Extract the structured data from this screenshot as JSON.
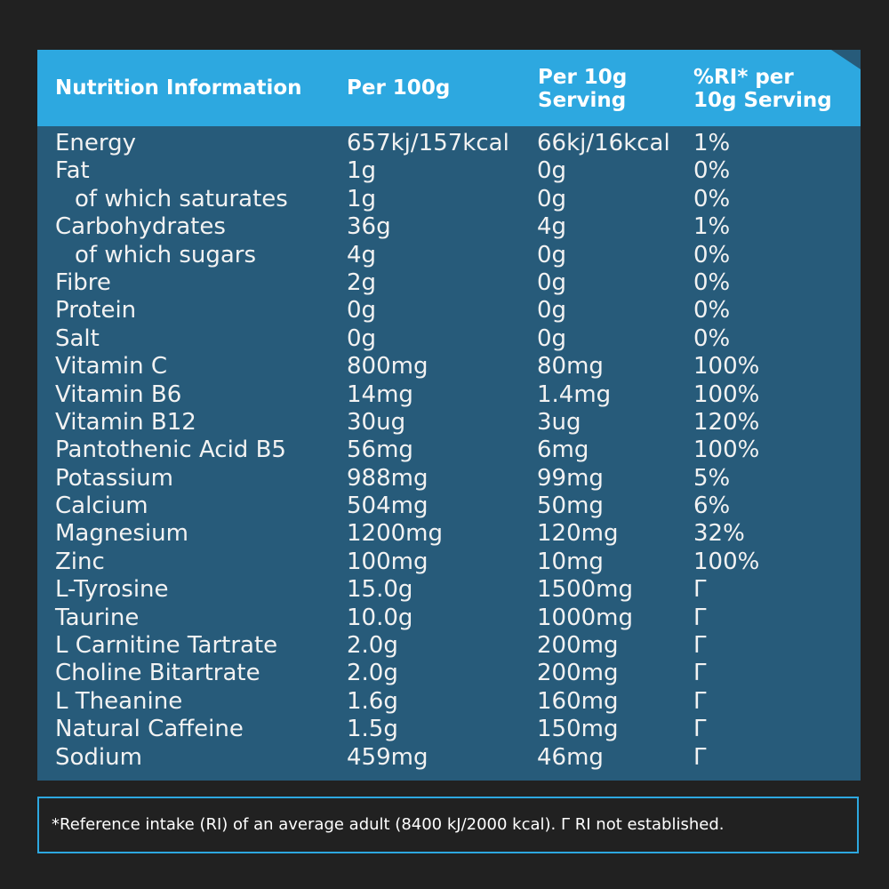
{
  "header": {
    "col1": "Nutrition Information",
    "col2": "Per 100g",
    "col3": "Per 10g\nServing",
    "col4": "%RI* per\n10g Serving"
  },
  "rows": [
    {
      "name": "Energy",
      "per100": "657kj/157kcal",
      "perServing": "66kj/16kcal",
      "ri": "1%"
    },
    {
      "name": "Fat",
      "per100": "1g",
      "perServing": "0g",
      "ri": "0%"
    },
    {
      "name": "of which saturates",
      "per100": "1g",
      "perServing": "0g",
      "ri": "0%"
    },
    {
      "name": "Carbohydrates",
      "per100": "36g",
      "perServing": "4g",
      "ri": "1%"
    },
    {
      "name": "of which sugars",
      "per100": "4g",
      "perServing": "0g",
      "ri": "0%"
    },
    {
      "name": "Fibre",
      "per100": "2g",
      "perServing": "0g",
      "ri": "0%"
    },
    {
      "name": "Protein",
      "per100": "0g",
      "perServing": "0g",
      "ri": "0%"
    },
    {
      "name": "Salt",
      "per100": "0g",
      "perServing": "0g",
      "ri": "0%"
    },
    {
      "name": "Vitamin C",
      "per100": "800mg",
      "perServing": "80mg",
      "ri": "100%"
    },
    {
      "name": "Vitamin B6",
      "per100": "14mg",
      "perServing": "1.4mg",
      "ri": "100%"
    },
    {
      "name": "Vitamin B12",
      "per100": "30ug",
      "perServing": "3ug",
      "ri": "120%"
    },
    {
      "name": "Pantothenic Acid B5",
      "per100": "56mg",
      "perServing": "6mg",
      "ri": "100%"
    },
    {
      "name": "Potassium",
      "per100": "988mg",
      "perServing": "99mg",
      "ri": "5%"
    },
    {
      "name": "Calcium",
      "per100": "504mg",
      "perServing": "50mg",
      "ri": "6%"
    },
    {
      "name": "Magnesium",
      "per100": "1200mg",
      "perServing": "120mg",
      "ri": "32%"
    },
    {
      "name": "Zinc",
      "per100": "100mg",
      "perServing": "10mg",
      "ri": "100%"
    },
    {
      "name": "L-Tyrosine",
      "per100": "15.0g",
      "perServing": "1500mg",
      "ri": "Γ"
    },
    {
      "name": "Taurine",
      "per100": "10.0g",
      "perServing": "1000mg",
      "ri": "Γ"
    },
    {
      "name": "L Carnitine Tartrate",
      "per100": "2.0g",
      "perServing": "200mg",
      "ri": "Γ"
    },
    {
      "name": "Choline Bitartrate",
      "per100": "2.0g",
      "perServing": "200mg",
      "ri": "Γ"
    },
    {
      "name": "L Theanine",
      "per100": "1.6g",
      "perServing": "160mg",
      "ri": "Γ"
    },
    {
      "name": "Natural Caffeine",
      "per100": "1.5g",
      "perServing": "150mg",
      "ri": "Γ"
    },
    {
      "name": "Sodium",
      "per100": "459mg",
      "perServing": "46mg",
      "ri": "Γ"
    }
  ],
  "footnote": "*Reference intake (RI) of an average adult (8400 kJ/2000 kcal). Γ RI not established.",
  "colors": {
    "background": "#212121",
    "header": "#2da8e0",
    "panel": "#275b7a",
    "text": "#ffffff"
  }
}
